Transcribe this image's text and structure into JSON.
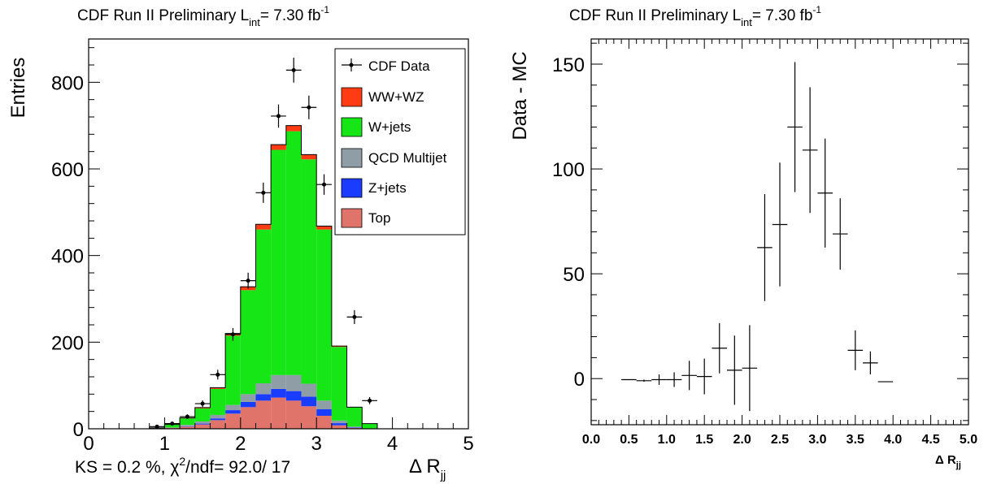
{
  "charts": [
    {
      "title_main": "CDF Run II Preliminary L",
      "title_sub": "int",
      "title_rest": "= 7.30 fb",
      "title_sup": "-1",
      "ylabel": "Entries",
      "xlabel_main": "Δ R",
      "xlabel_sub": "jj",
      "stats_pre": "KS = 0.2 %, χ",
      "stats_sup": "2",
      "stats_post": "/ndf= 92.0/ 17",
      "xticks": [
        "0",
        "1",
        "2",
        "3",
        "4",
        "5"
      ],
      "yticks": [
        "0",
        "200",
        "400",
        "600",
        "800"
      ],
      "legend": [
        {
          "label": "CDF Data",
          "type": "marker"
        },
        {
          "label": "WW+WZ",
          "color": "#ff3b14"
        },
        {
          "label": "W+jets",
          "color": "#16e616"
        },
        {
          "label": "QCD Multijet",
          "color": "#8f9ea6"
        },
        {
          "label": "Z+jets",
          "color": "#1a3cff"
        },
        {
          "label": "Top",
          "color": "#e0736a"
        }
      ]
    },
    {
      "title_main": "CDF Run II Preliminary L",
      "title_sub": "int",
      "title_rest": "= 7.30 fb",
      "title_sup": "-1",
      "ylabel": "Data - MC",
      "xlabel_main": "Δ R",
      "xlabel_sub": "jj",
      "xticks": [
        "0.0",
        "0.5",
        "1.0",
        "1.5",
        "2.0",
        "2.5",
        "3.0",
        "3.5",
        "4.0",
        "4.5",
        "5.0"
      ],
      "yticks": [
        "0",
        "50",
        "100",
        "150"
      ]
    }
  ],
  "chart_data": [
    {
      "type": "bar",
      "stacked": true,
      "bin_edges": [
        0.0,
        0.2,
        0.4,
        0.6,
        0.8,
        1.0,
        1.2,
        1.4,
        1.6,
        1.8,
        2.0,
        2.2,
        2.4,
        2.6,
        2.8,
        3.0,
        3.2,
        3.4,
        3.6,
        3.8,
        4.0,
        4.2,
        4.4,
        4.6,
        4.8,
        5.0
      ],
      "series": [
        {
          "name": "Top",
          "color": "#e0736a",
          "values": [
            0,
            0,
            0,
            0,
            0,
            2,
            5,
            10,
            20,
            35,
            50,
            65,
            72,
            65,
            52,
            30,
            8,
            2,
            0,
            0,
            0,
            0,
            0,
            0,
            0
          ]
        },
        {
          "name": "Z+jets",
          "color": "#1a3cff",
          "values": [
            0,
            0,
            0,
            0,
            0,
            0,
            1,
            2,
            4,
            8,
            12,
            15,
            20,
            22,
            22,
            15,
            5,
            1,
            0,
            0,
            0,
            0,
            0,
            0,
            0
          ]
        },
        {
          "name": "QCD Multijet",
          "color": "#8f9ea6",
          "values": [
            0,
            0,
            0,
            0,
            0,
            1,
            3,
            5,
            8,
            12,
            18,
            25,
            32,
            37,
            30,
            20,
            6,
            2,
            0,
            0,
            0,
            0,
            0,
            0,
            0
          ]
        },
        {
          "name": "W+jets",
          "color": "#16e616",
          "values": [
            0,
            0,
            0,
            0,
            2,
            7,
            15,
            30,
            60,
            160,
            240,
            355,
            520,
            563,
            518,
            395,
            170,
            45,
            12,
            0,
            0,
            0,
            0,
            0,
            0
          ]
        },
        {
          "name": "WW+WZ",
          "color": "#ff3b14",
          "values": [
            0,
            0,
            0,
            0,
            0,
            0,
            1,
            2,
            3,
            5,
            8,
            12,
            12,
            13,
            11,
            8,
            2,
            0,
            0,
            0,
            0,
            0,
            0,
            0,
            0
          ]
        }
      ],
      "data": {
        "name": "CDF Data",
        "x": [
          0.9,
          1.1,
          1.3,
          1.5,
          1.7,
          1.9,
          2.1,
          2.3,
          2.5,
          2.7,
          2.9,
          3.1,
          3.5,
          3.7
        ],
        "y": [
          5,
          12,
          28,
          58,
          125,
          218,
          342,
          545,
          722,
          828,
          742,
          564,
          258,
          65
        ]
      },
      "xlim": [
        0,
        5
      ],
      "ylim": [
        0,
        900
      ],
      "xlabel": "Δ Rjj",
      "ylabel": "Entries"
    },
    {
      "type": "scatter",
      "x": [
        0.5,
        0.7,
        0.9,
        1.1,
        1.3,
        1.5,
        1.7,
        1.9,
        2.1,
        2.3,
        2.5,
        2.7,
        2.9,
        3.1,
        3.3,
        3.5,
        3.7,
        3.9
      ],
      "y": [
        -0.5,
        -1,
        -0.5,
        -0.5,
        1.5,
        1.0,
        14.5,
        4,
        5,
        62.5,
        73.5,
        120,
        109,
        88.5,
        69,
        13.5,
        7.5,
        -1.5
      ],
      "yerr": [
        0,
        0.5,
        2.5,
        3.5,
        7,
        8.5,
        12,
        16.5,
        20.5,
        25.5,
        29.5,
        31,
        30,
        26,
        17,
        9.5,
        5.5,
        0
      ],
      "xerr": 0.1,
      "xlim": [
        0,
        5
      ],
      "ylim": [
        -22,
        162
      ],
      "xlabel": "Δ Rjj",
      "ylabel": "Data - MC"
    }
  ]
}
